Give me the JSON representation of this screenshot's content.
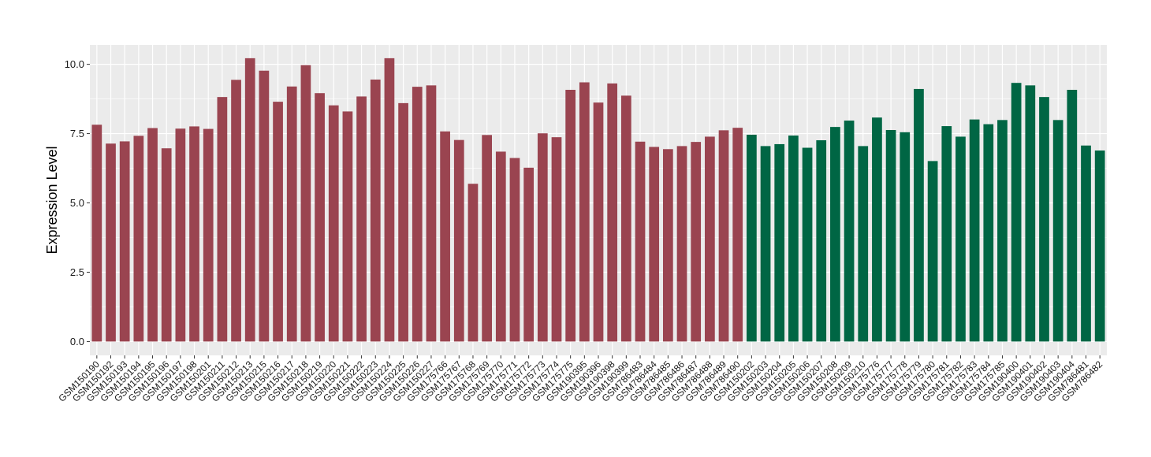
{
  "chart_data": {
    "type": "bar",
    "ylabel": "Expression Level",
    "xlabel": "",
    "title": "",
    "ylim": [
      -0.5,
      10.7
    ],
    "yticks": [
      0.0,
      2.5,
      5.0,
      7.5,
      10.0
    ],
    "ytick_labels": [
      "0.0",
      "2.5",
      "5.0",
      "7.5",
      "10.0"
    ],
    "grid": true,
    "panel_color": "#ebebeb",
    "grid_color": "#ffffff",
    "group_colors": [
      "#9a4450",
      "#006644"
    ],
    "categories": [
      "GSM150190",
      "GSM150192",
      "GSM150193",
      "GSM150194",
      "GSM150195",
      "GSM150196",
      "GSM150197",
      "GSM150198",
      "GSM150201",
      "GSM150211",
      "GSM150212",
      "GSM150213",
      "GSM150215",
      "GSM150216",
      "GSM150217",
      "GSM150218",
      "GSM150219",
      "GSM150220",
      "GSM150221",
      "GSM150222",
      "GSM150223",
      "GSM150224",
      "GSM150225",
      "GSM150226",
      "GSM150227",
      "GSM175766",
      "GSM175767",
      "GSM175768",
      "GSM175769",
      "GSM175770",
      "GSM175771",
      "GSM175772",
      "GSM175773",
      "GSM175774",
      "GSM175775",
      "GSM190395",
      "GSM190396",
      "GSM190398",
      "GSM190399",
      "GSM786483",
      "GSM786484",
      "GSM786485",
      "GSM786486",
      "GSM786487",
      "GSM786488",
      "GSM786489",
      "GSM786490",
      "GSM150202",
      "GSM150203",
      "GSM150204",
      "GSM150205",
      "GSM150206",
      "GSM150207",
      "GSM150208",
      "GSM150209",
      "GSM150210",
      "GSM175776",
      "GSM175777",
      "GSM175778",
      "GSM175779",
      "GSM175780",
      "GSM175781",
      "GSM175782",
      "GSM175783",
      "GSM175784",
      "GSM175785",
      "GSM190400",
      "GSM190401",
      "GSM190402",
      "GSM190403",
      "GSM190404",
      "GSM786481",
      "GSM786482"
    ],
    "values": [
      7.82,
      7.14,
      7.22,
      7.42,
      7.7,
      6.97,
      7.68,
      7.76,
      7.67,
      8.82,
      9.44,
      10.22,
      9.77,
      8.65,
      9.2,
      9.97,
      8.96,
      8.52,
      8.3,
      8.84,
      9.45,
      10.22,
      8.6,
      9.19,
      9.24,
      7.58,
      7.27,
      5.69,
      7.45,
      6.85,
      6.62,
      6.27,
      7.51,
      7.37,
      9.08,
      9.35,
      8.62,
      9.31,
      8.87,
      7.21,
      7.02,
      6.94,
      7.05,
      7.2,
      7.39,
      7.62,
      7.71,
      7.46,
      7.05,
      7.12,
      7.43,
      6.99,
      7.26,
      7.74,
      7.97,
      7.05,
      8.08,
      7.63,
      7.55,
      9.11,
      6.51,
      7.77,
      7.39,
      8.01,
      7.84,
      7.99,
      9.33,
      9.24,
      8.82,
      7.99,
      9.08,
      7.07,
      6.89
    ],
    "groups": [
      0,
      0,
      0,
      0,
      0,
      0,
      0,
      0,
      0,
      0,
      0,
      0,
      0,
      0,
      0,
      0,
      0,
      0,
      0,
      0,
      0,
      0,
      0,
      0,
      0,
      0,
      0,
      0,
      0,
      0,
      0,
      0,
      0,
      0,
      0,
      0,
      0,
      0,
      0,
      0,
      0,
      0,
      0,
      0,
      0,
      0,
      0,
      1,
      1,
      1,
      1,
      1,
      1,
      1,
      1,
      1,
      1,
      1,
      1,
      1,
      1,
      1,
      1,
      1,
      1,
      1,
      1,
      1,
      1,
      1,
      1,
      1,
      1
    ]
  }
}
